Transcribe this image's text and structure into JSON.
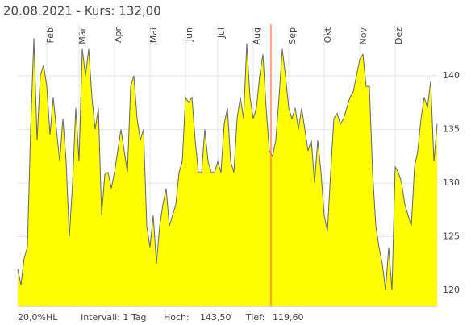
{
  "chart_data": {
    "type": "area",
    "title": "20.08.2021  -  Kurs: 132,00",
    "categories": [
      null,
      null,
      null,
      null,
      null,
      null,
      null,
      null,
      null,
      "Feb",
      null,
      null,
      null,
      null,
      null,
      null,
      null,
      null,
      null,
      "Mär",
      null,
      null,
      null,
      null,
      null,
      null,
      null,
      null,
      null,
      null,
      "Apr",
      null,
      null,
      null,
      null,
      null,
      null,
      null,
      null,
      null,
      null,
      "Mai",
      null,
      null,
      null,
      null,
      null,
      null,
      null,
      null,
      null,
      null,
      "Jun",
      null,
      null,
      null,
      null,
      null,
      null,
      null,
      null,
      null,
      "Jul",
      null,
      null,
      null,
      null,
      null,
      null,
      null,
      null,
      null,
      null,
      "Aug",
      null,
      null,
      null,
      null,
      null,
      null,
      null,
      null,
      null,
      null,
      "Sep",
      null,
      null,
      null,
      null,
      null,
      null,
      null,
      null,
      null,
      null,
      "Okt",
      null,
      null,
      null,
      null,
      null,
      null,
      null,
      null,
      null,
      null,
      "Nov",
      null,
      null,
      null,
      null,
      null,
      null,
      null,
      null,
      null,
      null,
      "Dez",
      null,
      null,
      null,
      null,
      null,
      null,
      null,
      null,
      null,
      null,
      null,
      null,
      null
    ],
    "values": [
      122,
      120.5,
      123,
      124,
      135,
      143.5,
      134,
      140,
      141,
      139,
      134.5,
      138,
      135,
      132,
      136,
      132,
      125,
      130,
      137,
      132,
      142.5,
      140,
      142.5,
      138,
      135,
      137,
      127,
      130.8,
      131,
      129.5,
      131,
      133,
      135,
      133,
      131,
      139,
      140,
      136,
      134,
      135,
      126,
      124,
      127,
      122.5,
      126,
      128,
      129.5,
      126,
      127,
      128,
      131,
      132,
      138,
      137.5,
      138,
      134,
      131,
      131,
      135,
      132,
      131,
      131,
      132,
      131,
      135.5,
      137,
      132,
      131,
      136,
      138,
      136,
      143,
      138,
      136,
      137,
      140,
      142,
      137,
      133,
      132.5,
      134,
      138,
      142.5,
      140,
      137,
      136,
      137,
      135,
      137,
      135,
      133,
      134,
      130,
      134,
      131,
      127,
      125.5,
      131,
      136,
      136.5,
      135.5,
      136,
      137,
      138,
      138.5,
      140,
      141.5,
      142,
      139,
      139,
      131,
      126,
      124,
      122.5,
      120,
      124,
      120,
      131.5,
      131,
      130,
      128,
      127,
      126,
      131.5,
      133,
      136,
      138,
      137,
      139.5,
      132,
      135.5
    ],
    "color": "#ffff00",
    "line_color": "#666666",
    "ylim": [
      118.5,
      144.8
    ],
    "yticks": [
      120,
      125,
      130,
      135,
      140
    ],
    "grid": true,
    "footer": {
      "range": "20,0%HL",
      "interval": "Intervall: 1 Tag",
      "high_label": "Hoch:",
      "high": "143,50",
      "low_label": "Tief:",
      "low": "119,60"
    }
  }
}
